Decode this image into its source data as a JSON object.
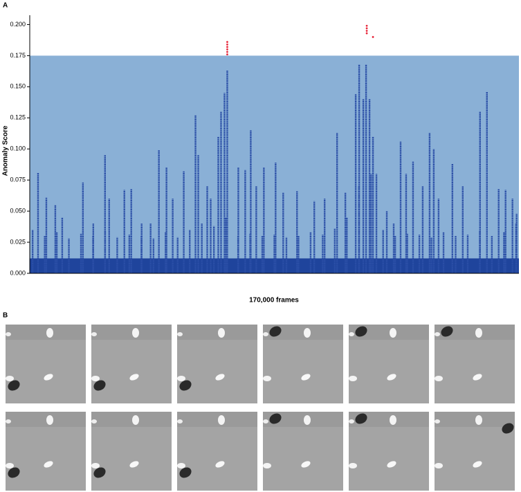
{
  "chart_data": {
    "type": "scatter",
    "panel_labels": [
      "A",
      "B"
    ],
    "xlabel": "170,000 frames",
    "ylabel": "Anomaly Score",
    "xlim": [
      0,
      170000
    ],
    "ylim": [
      0,
      0.2075
    ],
    "yticks": [
      {
        "value": 0,
        "label": "0.000"
      },
      {
        "value": 0.025,
        "label": "0.025"
      },
      {
        "value": 0.05,
        "label": "0.050"
      },
      {
        "value": 0.075,
        "label": "0.075"
      },
      {
        "value": 0.1,
        "label": "0.100"
      },
      {
        "value": 0.125,
        "label": "0.125"
      },
      {
        "value": 0.15,
        "label": "0.150"
      },
      {
        "value": 0.175,
        "label": "0.175"
      },
      {
        "value": 0.2,
        "label": "0.200"
      }
    ],
    "threshold": 0.175,
    "threshold_color": "#8ab0d6",
    "color": "#2a4ea6",
    "highlight_color": "#e8283c",
    "x": [
      2880,
      5760,
      8880,
      11280,
      18480,
      22080,
      26160,
      27600,
      32880,
      35280,
      38880,
      42000,
      44880,
      47520,
      49680,
      53520,
      57600,
      58560,
      61680,
      62880,
      65520,
      66480,
      67680,
      68640,
      72480,
      74880,
      76800,
      78720,
      81360,
      85440,
      88080,
      92880,
      98880,
      102480,
      106800,
      109680,
      113280,
      114480,
      115920,
      116880,
      118080,
      119280,
      120480,
      124080,
      126480,
      128880,
      130800,
      133200,
      136560,
      138960,
      140400,
      142080,
      146880,
      150480,
      156480,
      158880,
      162960,
      165360,
      167760,
      169200,
      1000,
      5200,
      9400,
      13600,
      17800,
      22000,
      26200,
      30400,
      34600,
      38800,
      43000,
      47200,
      51400,
      55600,
      59800,
      64000,
      68200,
      72400,
      76600,
      80800,
      85000,
      89200,
      93400,
      97600,
      101800,
      106000,
      110200,
      114400,
      118600,
      122800,
      127000,
      131200,
      135400,
      139600,
      143800,
      148000,
      152200,
      156400,
      160600,
      164800,
      169000
    ],
    "values": [
      0.081,
      0.061,
      0.055,
      0.045,
      0.073,
      0.04,
      0.095,
      0.06,
      0.067,
      0.068,
      0.04,
      0.04,
      0.099,
      0.085,
      0.06,
      0.082,
      0.127,
      0.095,
      0.07,
      0.06,
      0.11,
      0.13,
      0.145,
      0.163,
      0.085,
      0.083,
      0.115,
      0.07,
      0.085,
      0.089,
      0.065,
      0.066,
      0.058,
      0.06,
      0.113,
      0.065,
      0.144,
      0.168,
      0.14,
      0.168,
      0.14,
      0.11,
      0.08,
      0.05,
      0.04,
      0.106,
      0.08,
      0.09,
      0.07,
      0.113,
      0.1,
      0.06,
      0.088,
      0.07,
      0.13,
      0.146,
      0.068,
      0.067,
      0.06,
      0.048,
      0.035,
      0.03,
      0.033,
      0.028,
      0.032,
      0.03,
      0.034,
      0.029,
      0.031,
      0.03,
      0.028,
      0.033,
      0.029,
      0.035,
      0.04,
      0.038,
      0.045,
      0.03,
      0.032,
      0.03,
      0.031,
      0.029,
      0.03,
      0.033,
      0.031,
      0.036,
      0.045,
      0.07,
      0.08,
      0.035,
      0.03,
      0.032,
      0.031,
      0.029,
      0.033,
      0.03,
      0.031,
      0.034,
      0.03,
      0.033,
      0.04
    ],
    "outliers_x": [
      68640,
      68640,
      68640,
      68640,
      68640,
      68640,
      117120,
      117120,
      117120,
      117120,
      119280
    ],
    "outliers": [
      0.186,
      0.184,
      0.182,
      0.18,
      0.178,
      0.176,
      0.199,
      0.197,
      0.195,
      0.193,
      0.19
    ]
  }
}
